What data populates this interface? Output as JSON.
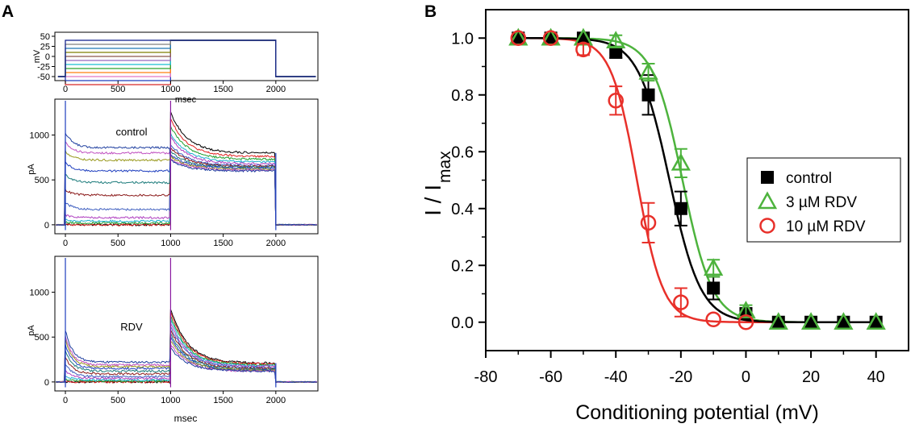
{
  "panels": {
    "a": "A",
    "b": "B"
  },
  "chart_data": [
    {
      "id": "A-protocol",
      "type": "line",
      "title": "",
      "xlabel": "msec",
      "ylabel": "mV",
      "xlim": [
        -100,
        2400
      ],
      "ylim": [
        -60,
        60
      ],
      "x_ticks": [
        "0",
        "500",
        "1000",
        "1500",
        "2000"
      ],
      "y_ticks": [
        "50",
        "25",
        "0",
        "-25",
        "-50"
      ],
      "holding_mV": -50,
      "conditioning_mV": [
        -70,
        -60,
        -50,
        -40,
        -30,
        -20,
        -10,
        0,
        10,
        20,
        30,
        40
      ],
      "test_mV": 40,
      "conditioning_window_ms": [
        0,
        1000
      ],
      "test_window_ms": [
        1000,
        2000
      ],
      "colors": [
        "#d62728",
        "#1f3fbf",
        "#e377c2",
        "#ff7f0e",
        "#2ca02c",
        "#17becf",
        "#9467bd",
        "#8c564b",
        "#7f7f00",
        "#1f77b4",
        "#7f7f7f",
        "#0b1a8a"
      ]
    },
    {
      "id": "A-control",
      "type": "line",
      "annotation": "control",
      "xlabel": "",
      "ylabel": "pA",
      "xlim": [
        -100,
        2400
      ],
      "ylim": [
        -100,
        1400
      ],
      "x_ticks": [
        "0",
        "500",
        "1000",
        "1500",
        "2000"
      ],
      "y_ticks": [
        "0",
        "500",
        "1000"
      ],
      "cond_levels": [
        0,
        0,
        20,
        40,
        80,
        170,
        330,
        470,
        600,
        720,
        800,
        860
      ],
      "cond_peak": [
        0,
        0,
        25,
        55,
        110,
        250,
        390,
        560,
        700,
        820,
        920,
        1030
      ],
      "test_peak": [
        1250,
        1180,
        1100,
        1020,
        980,
        900,
        860,
        820,
        780,
        760,
        740,
        720
      ],
      "test_steady": [
        800,
        760,
        730,
        700,
        680,
        660,
        650,
        640,
        630,
        620,
        610,
        600
      ]
    },
    {
      "id": "A-RDV",
      "type": "line",
      "annotation": "RDV",
      "xlabel": "msec",
      "ylabel": "pA",
      "xlim": [
        -100,
        2400
      ],
      "ylim": [
        -100,
        1400
      ],
      "x_ticks": [
        "0",
        "500",
        "1000",
        "1500",
        "2000"
      ],
      "y_ticks": [
        "0",
        "500",
        "1000"
      ],
      "cond_levels": [
        0,
        0,
        10,
        20,
        40,
        60,
        90,
        120,
        150,
        170,
        190,
        220
      ],
      "cond_peak": [
        0,
        0,
        30,
        70,
        120,
        200,
        280,
        350,
        420,
        470,
        520,
        580
      ],
      "test_peak": [
        820,
        780,
        740,
        700,
        660,
        620,
        580,
        540,
        500,
        460,
        420,
        380
      ],
      "test_steady": [
        210,
        200,
        190,
        180,
        170,
        160,
        150,
        140,
        130,
        130,
        120,
        120
      ]
    },
    {
      "id": "B",
      "type": "scatter",
      "title": "",
      "xlabel": "Conditioning potential (mV)",
      "ylabel": "I / I",
      "ylabel_sub": "max",
      "xlim": [
        -80,
        50
      ],
      "ylim": [
        -0.1,
        1.1
      ],
      "x_ticks": [
        "-80",
        "-60",
        "-40",
        "-20",
        "0",
        "20",
        "40"
      ],
      "y_ticks": [
        "0.0",
        "0.2",
        "0.4",
        "0.6",
        "0.8",
        "1.0"
      ],
      "legend_position": "right",
      "series": [
        {
          "name": "control",
          "color": "#000000",
          "marker": "square",
          "x": [
            -70,
            -60,
            -50,
            -40,
            -30,
            -20,
            -10,
            0,
            10,
            20,
            30,
            40
          ],
          "y": [
            1.0,
            1.0,
            1.0,
            0.95,
            0.8,
            0.4,
            0.12,
            0.03,
            0.0,
            0.0,
            0.0,
            0.0
          ],
          "err": [
            0.01,
            0.01,
            0.01,
            0.02,
            0.07,
            0.06,
            0.04,
            0.02,
            0.01,
            0.01,
            0.01,
            0.01
          ],
          "fit_v_half": -23.5,
          "fit_k": 4.8
        },
        {
          "name": "3 µM RDV",
          "color": "#4db33d",
          "marker": "triangle",
          "x": [
            -70,
            -60,
            -50,
            -40,
            -30,
            -20,
            -10,
            0,
            10,
            20,
            30,
            40
          ],
          "y": [
            1.0,
            1.0,
            1.0,
            0.99,
            0.88,
            0.56,
            0.19,
            0.04,
            0.0,
            0.0,
            0.0,
            0.0
          ],
          "err": [
            0.01,
            0.01,
            0.01,
            0.02,
            0.03,
            0.05,
            0.03,
            0.02,
            0.01,
            0.01,
            0.01,
            0.01
          ],
          "fit_v_half": -19.5,
          "fit_k": 4.6
        },
        {
          "name": "10 µM RDV",
          "color": "#e8302a",
          "marker": "circle",
          "x": [
            -70,
            -60,
            -50,
            -40,
            -30,
            -20,
            -10,
            0
          ],
          "y": [
            1.0,
            1.0,
            0.96,
            0.78,
            0.35,
            0.07,
            0.01,
            0.0
          ],
          "err": [
            0.01,
            0.01,
            0.02,
            0.05,
            0.07,
            0.05,
            0.01,
            0.01
          ],
          "fit_v_half": -33.5,
          "fit_k": 4.0
        }
      ]
    }
  ]
}
